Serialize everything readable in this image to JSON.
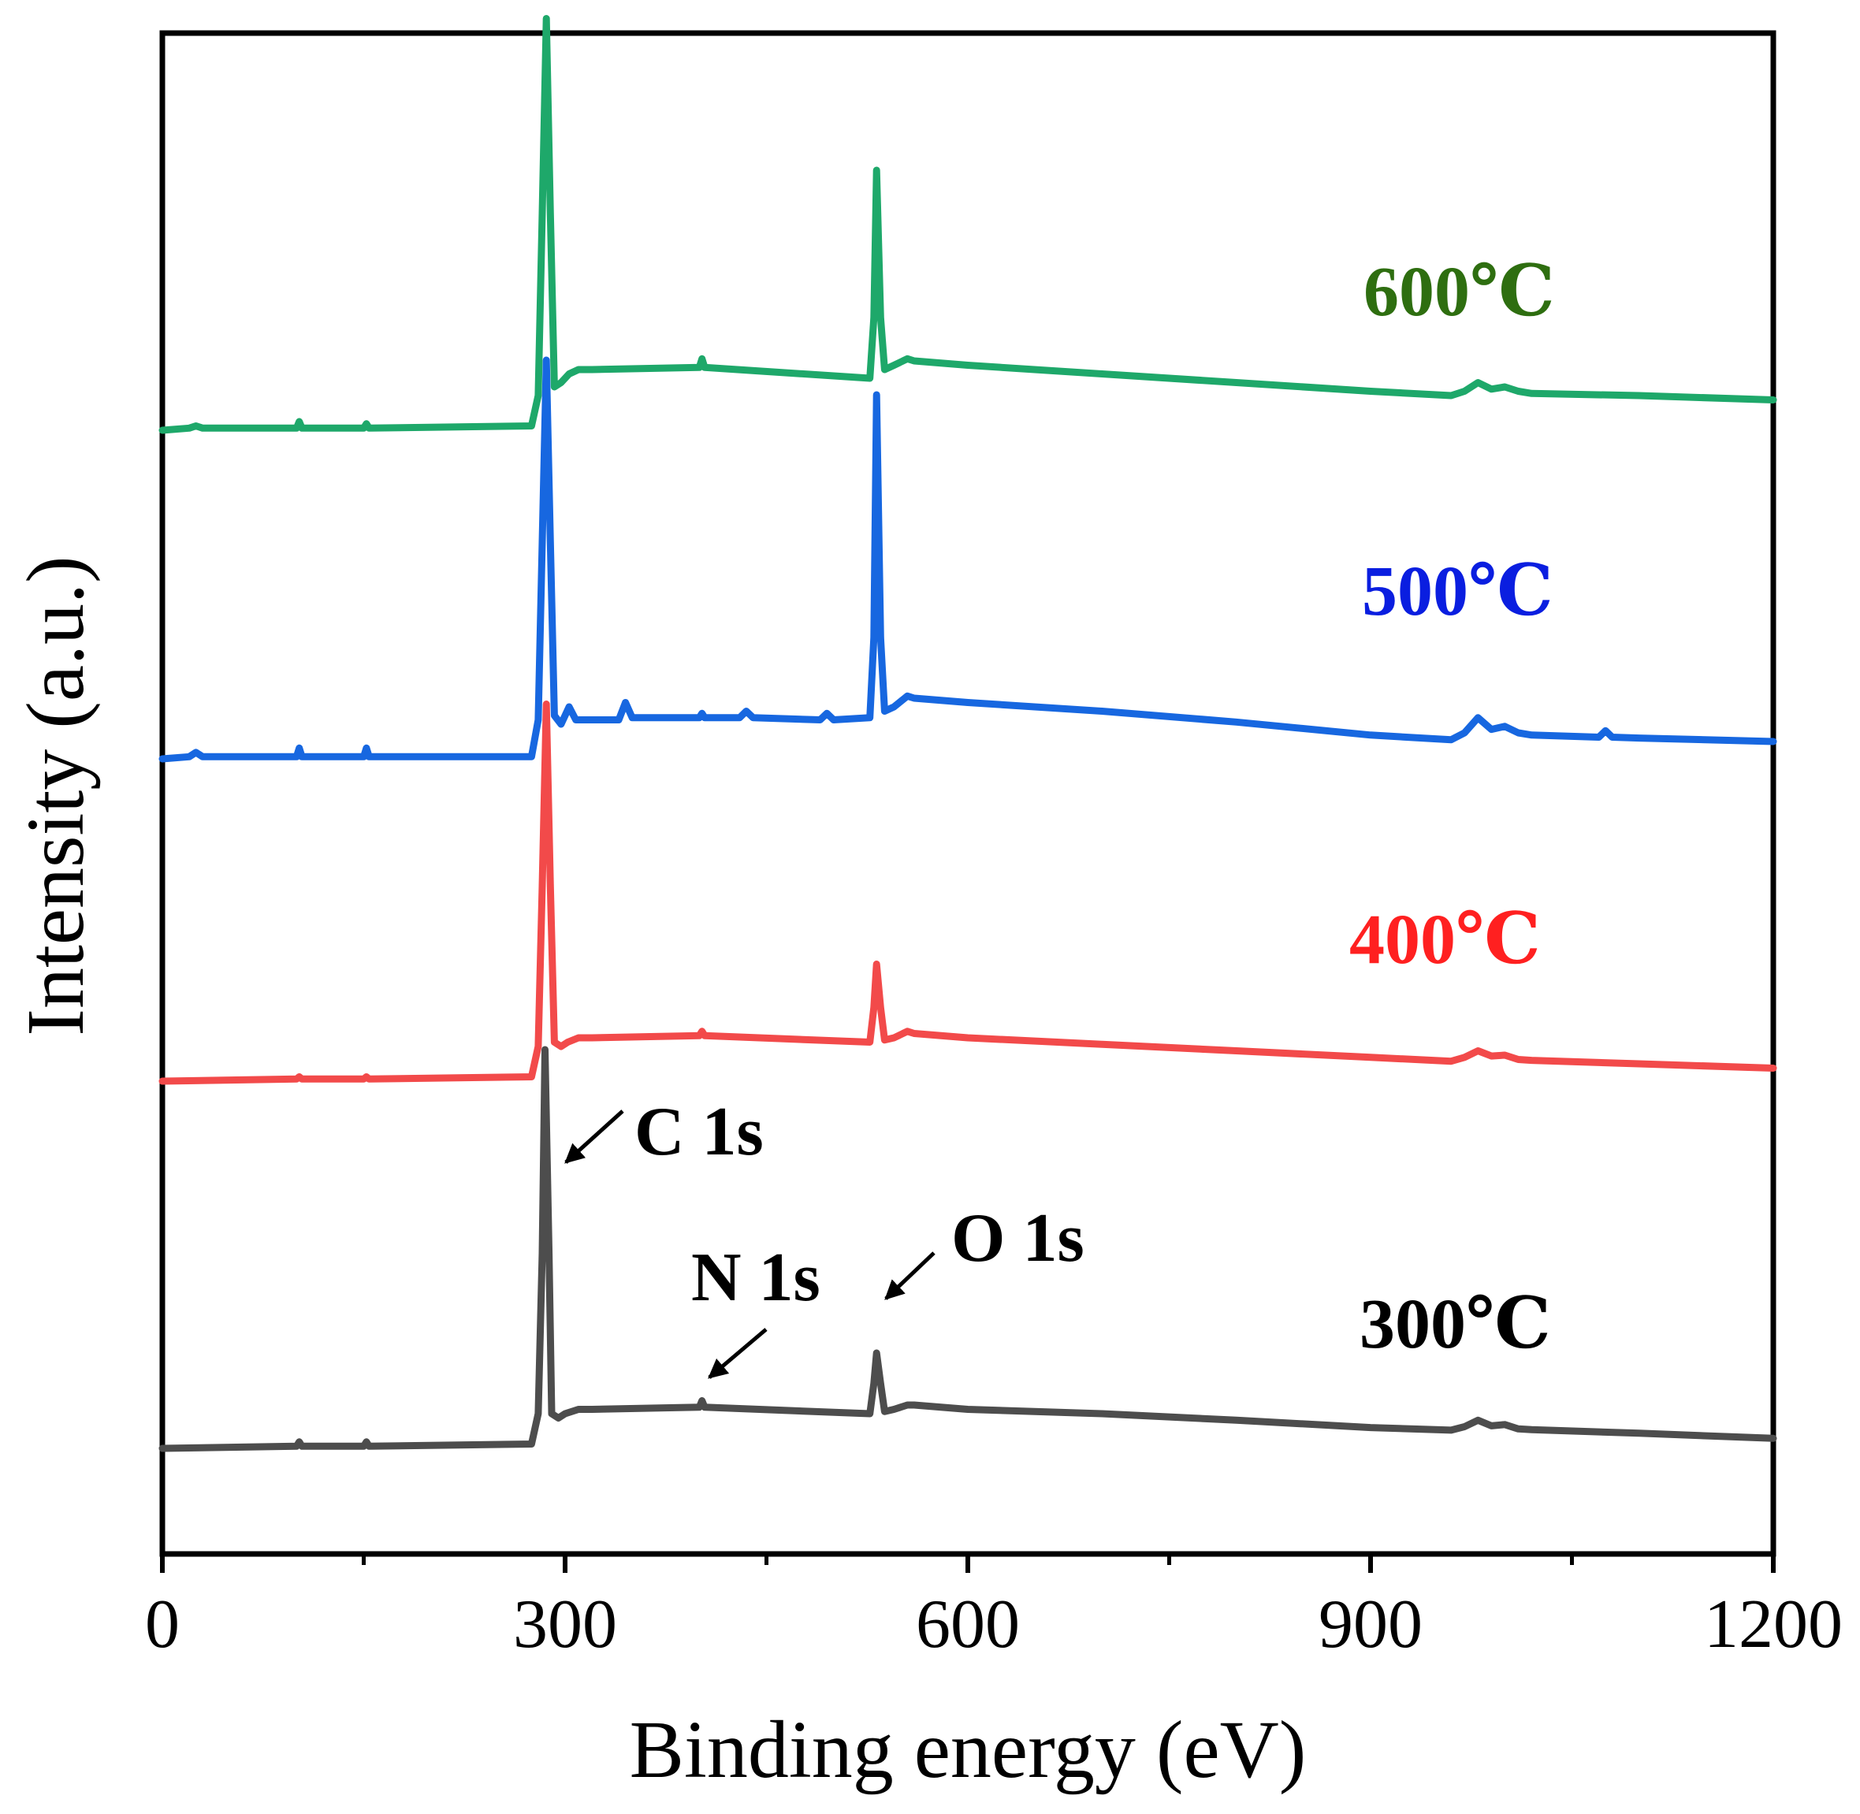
{
  "chart_data": {
    "type": "line",
    "title": "",
    "xlabel": "Binding energy (eV)",
    "ylabel": "Intensity (a.u.)",
    "xlim": [
      0,
      1200
    ],
    "xticks": [
      "0",
      "300",
      "600",
      "900",
      "1200"
    ],
    "yticks": [],
    "grid": false,
    "legend": "inline labels to the right of each curve",
    "series": [
      {
        "name": "300℃",
        "color": "#4d4d4d",
        "label_color": "#000000",
        "x": [
          0,
          100,
          102,
          104,
          150,
          152,
          154,
          275,
          280,
          283,
          285,
          288,
          290,
          295,
          300,
          310,
          320,
          400,
          402,
          404,
          527,
          530,
          532,
          535,
          538,
          545,
          555,
          560,
          600,
          700,
          800,
          900,
          960,
          970,
          980,
          990,
          1000,
          1010,
          1020,
          1100,
          1200
        ],
        "y": [
          0.0,
          0.5,
          1.5,
          0.5,
          0.5,
          1.5,
          0.5,
          1.0,
          8.0,
          45.0,
          92.0,
          45.0,
          8.0,
          7.0,
          8.0,
          9.0,
          9.0,
          9.5,
          11.0,
          9.5,
          8.0,
          15.0,
          22.0,
          15.0,
          8.5,
          9.0,
          10.0,
          10.0,
          9.0,
          8.0,
          6.5,
          4.8,
          4.2,
          5.0,
          6.5,
          5.2,
          5.5,
          4.5,
          4.3,
          3.5,
          2.3
        ]
      },
      {
        "name": "400℃",
        "color": "#f24a4a",
        "label_color": "#ff2020",
        "x": [
          0,
          100,
          102,
          104,
          150,
          152,
          154,
          275,
          280,
          283,
          286,
          289,
          292,
          297,
          302,
          310,
          320,
          400,
          402,
          404,
          527,
          530,
          532,
          535,
          538,
          545,
          555,
          560,
          600,
          700,
          800,
          900,
          960,
          970,
          980,
          990,
          1000,
          1010,
          1020,
          1100,
          1200
        ],
        "y": [
          0.0,
          0.5,
          1.0,
          0.5,
          0.5,
          1.0,
          0.5,
          1.0,
          8.0,
          45.0,
          87.0,
          45.0,
          9.0,
          8.0,
          9.0,
          10.0,
          10.0,
          10.5,
          11.5,
          10.5,
          9.0,
          17.0,
          27.0,
          17.0,
          9.5,
          10.0,
          11.5,
          11.0,
          10.0,
          8.5,
          7.0,
          5.5,
          4.6,
          5.5,
          7.0,
          5.8,
          6.0,
          5.0,
          4.8,
          4.0,
          3.0
        ]
      },
      {
        "name": "500℃",
        "color": "#1767e0",
        "label_color": "#0a1ee0",
        "x": [
          0,
          20,
          25,
          30,
          100,
          102,
          104,
          150,
          152,
          154,
          275,
          280,
          283,
          286,
          289,
          292,
          297,
          303,
          308,
          320,
          340,
          345,
          350,
          400,
          402,
          404,
          430,
          435,
          440,
          490,
          495,
          500,
          527,
          530,
          532,
          535,
          538,
          545,
          555,
          560,
          600,
          700,
          800,
          900,
          960,
          970,
          980,
          990,
          1000,
          1010,
          1020,
          1070,
          1075,
          1080,
          1100,
          1200
        ],
        "y": [
          0.0,
          0.5,
          1.5,
          0.5,
          0.5,
          2.5,
          0.5,
          0.5,
          2.5,
          0.5,
          0.5,
          9.0,
          50.0,
          92.0,
          50.0,
          10.0,
          8.0,
          12.0,
          9.0,
          9.0,
          9.0,
          13.0,
          9.5,
          9.5,
          10.5,
          9.5,
          9.5,
          11.0,
          9.5,
          9.0,
          10.5,
          9.0,
          9.5,
          28.0,
          84.0,
          28.0,
          11.0,
          12.0,
          14.5,
          14.0,
          13.0,
          11.0,
          8.5,
          5.5,
          4.4,
          6.0,
          9.5,
          6.8,
          7.5,
          6.0,
          5.5,
          5.0,
          6.5,
          5.0,
          4.8,
          4.0
        ]
      },
      {
        "name": "600℃",
        "color": "#1ea86a",
        "label_color": "#2e6e10",
        "x": [
          0,
          20,
          25,
          30,
          100,
          102,
          104,
          150,
          152,
          154,
          275,
          280,
          283,
          286,
          289,
          292,
          297,
          303,
          310,
          320,
          400,
          402,
          404,
          527,
          530,
          532,
          535,
          538,
          545,
          555,
          560,
          600,
          700,
          800,
          900,
          960,
          970,
          980,
          990,
          1000,
          1010,
          1020,
          1100,
          1200
        ],
        "y": [
          0.0,
          0.5,
          1.0,
          0.5,
          0.5,
          2.0,
          0.5,
          0.5,
          1.5,
          0.5,
          1.0,
          8.0,
          50.0,
          95.0,
          50.0,
          10.0,
          11.0,
          13.0,
          14.0,
          14.0,
          14.5,
          16.5,
          14.5,
          12.0,
          26.0,
          60.0,
          26.0,
          14.0,
          15.0,
          16.5,
          16.0,
          15.0,
          13.0,
          11.0,
          9.0,
          8.0,
          9.0,
          11.0,
          9.5,
          10.0,
          9.0,
          8.5,
          8.0,
          7.0
        ]
      }
    ],
    "annotations": [
      {
        "text": "C 1s",
        "x": 285
      },
      {
        "text": "N 1s",
        "x": 400
      },
      {
        "text": "O 1s",
        "x": 532
      }
    ]
  }
}
